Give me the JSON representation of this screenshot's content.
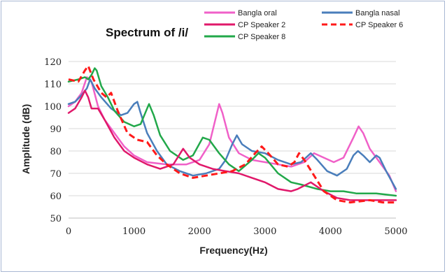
{
  "chart_data": {
    "type": "line",
    "title": "Spectrum of /i/",
    "xlabel": "Frequency(Hz)",
    "ylabel": "Amplitude (dB)",
    "xlim": [
      0,
      5000
    ],
    "ylim": [
      50,
      120
    ],
    "x_ticks": [
      0,
      1000,
      2000,
      3000,
      4000,
      5000
    ],
    "y_ticks": [
      50,
      60,
      70,
      80,
      90,
      100,
      110,
      120
    ],
    "grid": "horizontal",
    "legend_position": "top",
    "series": [
      {
        "name": "Bangla oral",
        "color": "#f060c8",
        "dash": "solid",
        "points": [
          [
            0,
            100
          ],
          [
            100,
            102
          ],
          [
            200,
            106
          ],
          [
            280,
            113
          ],
          [
            350,
            111
          ],
          [
            450,
            100
          ],
          [
            550,
            94
          ],
          [
            700,
            88
          ],
          [
            850,
            82
          ],
          [
            1000,
            78
          ],
          [
            1200,
            75
          ],
          [
            1500,
            74
          ],
          [
            1800,
            74
          ],
          [
            2000,
            76
          ],
          [
            2150,
            83
          ],
          [
            2250,
            95
          ],
          [
            2300,
            101
          ],
          [
            2350,
            97
          ],
          [
            2450,
            86
          ],
          [
            2600,
            79
          ],
          [
            2800,
            76
          ],
          [
            3000,
            75
          ],
          [
            3200,
            74
          ],
          [
            3400,
            73
          ],
          [
            3600,
            75
          ],
          [
            3750,
            79
          ],
          [
            3900,
            77
          ],
          [
            4050,
            75
          ],
          [
            4200,
            77
          ],
          [
            4350,
            86
          ],
          [
            4430,
            91
          ],
          [
            4500,
            88
          ],
          [
            4600,
            81
          ],
          [
            4750,
            75
          ],
          [
            4900,
            69
          ],
          [
            5000,
            62
          ]
        ]
      },
      {
        "name": "Bangla nasal",
        "color": "#4a7ebb",
        "dash": "solid",
        "points": [
          [
            0,
            101
          ],
          [
            100,
            102
          ],
          [
            200,
            105
          ],
          [
            280,
            108
          ],
          [
            330,
            112
          ],
          [
            400,
            108
          ],
          [
            500,
            104
          ],
          [
            650,
            99
          ],
          [
            800,
            96
          ],
          [
            900,
            97
          ],
          [
            1000,
            101
          ],
          [
            1050,
            102
          ],
          [
            1100,
            97
          ],
          [
            1200,
            88
          ],
          [
            1350,
            80
          ],
          [
            1500,
            74
          ],
          [
            1700,
            71
          ],
          [
            1900,
            69
          ],
          [
            2100,
            70
          ],
          [
            2300,
            72
          ],
          [
            2400,
            76
          ],
          [
            2500,
            83
          ],
          [
            2570,
            87
          ],
          [
            2650,
            83
          ],
          [
            2800,
            80
          ],
          [
            3000,
            79
          ],
          [
            3200,
            76
          ],
          [
            3400,
            74
          ],
          [
            3550,
            75
          ],
          [
            3700,
            79
          ],
          [
            3800,
            76
          ],
          [
            3950,
            71
          ],
          [
            4100,
            69
          ],
          [
            4250,
            72
          ],
          [
            4350,
            78
          ],
          [
            4420,
            80
          ],
          [
            4500,
            78
          ],
          [
            4600,
            75
          ],
          [
            4700,
            78
          ],
          [
            4750,
            77
          ],
          [
            4850,
            71
          ],
          [
            5000,
            63
          ]
        ]
      },
      {
        "name": "CP Speaker 2",
        "color": "#e0186a",
        "dash": "solid",
        "points": [
          [
            0,
            97
          ],
          [
            100,
            99
          ],
          [
            200,
            104
          ],
          [
            250,
            107
          ],
          [
            300,
            104
          ],
          [
            350,
            99
          ],
          [
            450,
            99
          ],
          [
            550,
            94
          ],
          [
            700,
            86
          ],
          [
            850,
            80
          ],
          [
            1000,
            77
          ],
          [
            1200,
            74
          ],
          [
            1400,
            72
          ],
          [
            1600,
            74
          ],
          [
            1750,
            81
          ],
          [
            1850,
            77
          ],
          [
            2000,
            74
          ],
          [
            2200,
            72
          ],
          [
            2400,
            71
          ],
          [
            2600,
            70
          ],
          [
            2800,
            68
          ],
          [
            3000,
            66
          ],
          [
            3200,
            63
          ],
          [
            3400,
            62
          ],
          [
            3500,
            63
          ],
          [
            3700,
            66
          ],
          [
            3900,
            62
          ],
          [
            4100,
            59
          ],
          [
            4300,
            58
          ],
          [
            4500,
            58
          ],
          [
            4800,
            58
          ],
          [
            5000,
            58
          ]
        ]
      },
      {
        "name": "CP Speaker 6",
        "color": "#ff1a1a",
        "dash": "dashed",
        "points": [
          [
            0,
            112
          ],
          [
            150,
            111
          ],
          [
            250,
            116
          ],
          [
            300,
            118
          ],
          [
            380,
            112
          ],
          [
            500,
            106
          ],
          [
            580,
            104
          ],
          [
            650,
            106
          ],
          [
            750,
            98
          ],
          [
            900,
            88
          ],
          [
            1050,
            85
          ],
          [
            1200,
            84
          ],
          [
            1350,
            78
          ],
          [
            1500,
            74
          ],
          [
            1700,
            70
          ],
          [
            1900,
            68
          ],
          [
            2100,
            69
          ],
          [
            2300,
            70
          ],
          [
            2500,
            71
          ],
          [
            2700,
            74
          ],
          [
            2850,
            79
          ],
          [
            2950,
            82
          ],
          [
            3050,
            79
          ],
          [
            3200,
            74
          ],
          [
            3350,
            73
          ],
          [
            3450,
            75
          ],
          [
            3520,
            79
          ],
          [
            3600,
            76
          ],
          [
            3750,
            69
          ],
          [
            3900,
            62
          ],
          [
            4100,
            58
          ],
          [
            4300,
            57
          ],
          [
            4600,
            58
          ],
          [
            4800,
            57
          ],
          [
            5000,
            57
          ]
        ]
      },
      {
        "name": "CP Speaker 8",
        "color": "#22a84a",
        "dash": "solid",
        "points": [
          [
            0,
            111
          ],
          [
            150,
            112
          ],
          [
            250,
            113
          ],
          [
            300,
            112
          ],
          [
            350,
            114
          ],
          [
            400,
            117
          ],
          [
            430,
            116
          ],
          [
            500,
            109
          ],
          [
            600,
            104
          ],
          [
            700,
            98
          ],
          [
            850,
            93
          ],
          [
            1000,
            91
          ],
          [
            1100,
            92
          ],
          [
            1200,
            99
          ],
          [
            1230,
            101
          ],
          [
            1300,
            96
          ],
          [
            1400,
            87
          ],
          [
            1550,
            80
          ],
          [
            1750,
            76
          ],
          [
            1900,
            78
          ],
          [
            2050,
            86
          ],
          [
            2150,
            85
          ],
          [
            2300,
            79
          ],
          [
            2450,
            74
          ],
          [
            2600,
            71
          ],
          [
            2800,
            76
          ],
          [
            2900,
            79
          ],
          [
            3000,
            77
          ],
          [
            3200,
            70
          ],
          [
            3400,
            66
          ],
          [
            3550,
            65
          ],
          [
            3800,
            63
          ],
          [
            4000,
            62
          ],
          [
            4200,
            62
          ],
          [
            4400,
            61
          ],
          [
            4700,
            61
          ],
          [
            5000,
            60
          ]
        ]
      }
    ]
  }
}
